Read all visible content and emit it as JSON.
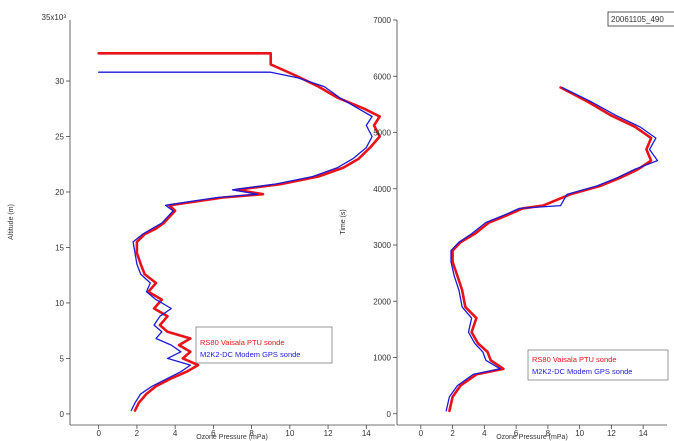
{
  "chart_data": [
    {
      "type": "line",
      "x_axis": {
        "label": "Ozone Pressure (mPa)",
        "range": [
          -1.5,
          15.5
        ],
        "ticks": [
          0,
          2,
          4,
          6,
          8,
          10,
          12,
          14
        ],
        "tick_labels": [
          "0",
          "2",
          "4",
          "6",
          "8",
          "10",
          "12",
          "14"
        ]
      },
      "y_axis": {
        "label": "Altitude (m)",
        "range": [
          -1000,
          35500
        ],
        "multiplier_label": "35x10³",
        "ticks": [
          0,
          5000,
          10000,
          15000,
          20000,
          25000,
          30000
        ],
        "tick_labels": [
          "0",
          "5",
          "10",
          "15",
          "20",
          "25",
          "30"
        ]
      },
      "legend": {
        "placement": "lower-right"
      },
      "series": [
        {
          "name": "RS80 Vaisala PTU sonde",
          "color": "#e8121a",
          "points": [
            [
              1.9,
              300
            ],
            [
              2.1,
              1000
            ],
            [
              2.5,
              1800
            ],
            [
              3.0,
              2500
            ],
            [
              3.8,
              3200
            ],
            [
              4.6,
              3800
            ],
            [
              5.2,
              4400
            ],
            [
              4.4,
              5000
            ],
            [
              4.8,
              5600
            ],
            [
              4.2,
              6200
            ],
            [
              4.8,
              6800
            ],
            [
              3.6,
              7400
            ],
            [
              3.2,
              8000
            ],
            [
              3.6,
              8800
            ],
            [
              2.9,
              9500
            ],
            [
              3.3,
              10300
            ],
            [
              2.6,
              11000
            ],
            [
              3.0,
              11800
            ],
            [
              2.4,
              12600
            ],
            [
              2.2,
              13500
            ],
            [
              2.0,
              14500
            ],
            [
              2.0,
              15500
            ],
            [
              2.4,
              16200
            ],
            [
              3.0,
              16700
            ],
            [
              3.4,
              17200
            ],
            [
              4.0,
              18300
            ],
            [
              3.7,
              18800
            ],
            [
              5.3,
              19200
            ],
            [
              6.5,
              19500
            ],
            [
              8.6,
              19800
            ],
            [
              7.2,
              20200
            ],
            [
              9.5,
              20700
            ],
            [
              11.5,
              21400
            ],
            [
              12.8,
              22200
            ],
            [
              13.6,
              23000
            ],
            [
              14.2,
              24000
            ],
            [
              14.7,
              25000
            ],
            [
              14.4,
              26000
            ],
            [
              14.7,
              26800
            ],
            [
              13.9,
              27500
            ],
            [
              12.5,
              28500
            ],
            [
              11.5,
              29500
            ],
            [
              10.3,
              30500
            ],
            [
              9.0,
              31500
            ],
            [
              9.0,
              32500
            ],
            [
              0,
              32500
            ]
          ]
        },
        {
          "name": "M2K2-DC Modem GPS sonde",
          "color": "#1a1ad8",
          "points": [
            [
              1.7,
              300
            ],
            [
              1.9,
              1000
            ],
            [
              2.2,
              1800
            ],
            [
              2.8,
              2500
            ],
            [
              3.6,
              3200
            ],
            [
              4.3,
              3800
            ],
            [
              4.8,
              4400
            ],
            [
              3.6,
              5000
            ],
            [
              4.3,
              5600
            ],
            [
              3.8,
              6200
            ],
            [
              3.0,
              6800
            ],
            [
              3.3,
              7400
            ],
            [
              2.9,
              8000
            ],
            [
              3.2,
              8800
            ],
            [
              3.8,
              9500
            ],
            [
              3.0,
              10300
            ],
            [
              2.5,
              11000
            ],
            [
              2.7,
              11800
            ],
            [
              2.2,
              12600
            ],
            [
              2.0,
              13500
            ],
            [
              1.9,
              14500
            ],
            [
              1.8,
              15500
            ],
            [
              2.3,
              16200
            ],
            [
              2.8,
              16700
            ],
            [
              3.3,
              17200
            ],
            [
              3.9,
              18300
            ],
            [
              3.5,
              18800
            ],
            [
              5.0,
              19200
            ],
            [
              6.2,
              19500
            ],
            [
              8.3,
              19800
            ],
            [
              7.0,
              20200
            ],
            [
              9.2,
              20700
            ],
            [
              11.2,
              21400
            ],
            [
              12.5,
              22200
            ],
            [
              13.3,
              23000
            ],
            [
              14.0,
              24000
            ],
            [
              14.3,
              25000
            ],
            [
              14.0,
              26000
            ],
            [
              14.3,
              26800
            ],
            [
              13.6,
              27500
            ],
            [
              12.6,
              28500
            ],
            [
              11.8,
              29500
            ],
            [
              10.4,
              30300
            ],
            [
              9.0,
              30800
            ],
            [
              0,
              30800
            ]
          ]
        }
      ]
    },
    {
      "type": "line",
      "annotation": "20061105_490",
      "x_axis": {
        "label": "Ozone Pressure (mPa)",
        "range": [
          -1.5,
          15.5
        ],
        "ticks": [
          0,
          2,
          4,
          6,
          8,
          10,
          12,
          14
        ],
        "tick_labels": [
          "0",
          "2",
          "4",
          "6",
          "8",
          "10",
          "12",
          "14"
        ]
      },
      "y_axis": {
        "label": "Time (s)",
        "range": [
          -200,
          7000
        ],
        "ticks": [
          0,
          1000,
          2000,
          3000,
          4000,
          5000,
          6000,
          7000
        ],
        "tick_labels": [
          "0",
          "1000",
          "2000",
          "3000",
          "4000",
          "5000",
          "6000",
          "7000"
        ]
      },
      "legend": {
        "placement": "lower-right"
      },
      "series": [
        {
          "name": "RS80 Vaisala PTU sonde",
          "color": "#e8121a",
          "points": [
            [
              1.8,
              50
            ],
            [
              2.0,
              300
            ],
            [
              2.5,
              500
            ],
            [
              3.5,
              700
            ],
            [
              5.2,
              800
            ],
            [
              4.4,
              950
            ],
            [
              4.2,
              1100
            ],
            [
              3.6,
              1250
            ],
            [
              3.2,
              1450
            ],
            [
              3.5,
              1700
            ],
            [
              2.8,
              1900
            ],
            [
              2.6,
              2200
            ],
            [
              2.3,
              2450
            ],
            [
              2.0,
              2700
            ],
            [
              2.0,
              2900
            ],
            [
              2.5,
              3050
            ],
            [
              3.4,
              3200
            ],
            [
              4.3,
              3400
            ],
            [
              5.6,
              3550
            ],
            [
              6.4,
              3650
            ],
            [
              7.7,
              3700
            ],
            [
              9.4,
              3900
            ],
            [
              11.3,
              4050
            ],
            [
              12.6,
              4200
            ],
            [
              13.7,
              4350
            ],
            [
              14.5,
              4500
            ],
            [
              14.2,
              4700
            ],
            [
              14.5,
              4900
            ],
            [
              13.5,
              5100
            ],
            [
              12.0,
              5300
            ],
            [
              10.5,
              5550
            ],
            [
              8.8,
              5800
            ]
          ]
        },
        {
          "name": "M2K2-DC Modem GPS sonde",
          "color": "#1a1ad8",
          "points": [
            [
              1.6,
              50
            ],
            [
              1.8,
              300
            ],
            [
              2.3,
              500
            ],
            [
              3.3,
              700
            ],
            [
              5.0,
              800
            ],
            [
              4.1,
              950
            ],
            [
              3.9,
              1100
            ],
            [
              3.4,
              1250
            ],
            [
              3.0,
              1450
            ],
            [
              3.2,
              1700
            ],
            [
              2.6,
              1900
            ],
            [
              2.4,
              2200
            ],
            [
              2.1,
              2450
            ],
            [
              1.9,
              2700
            ],
            [
              1.9,
              2900
            ],
            [
              2.4,
              3050
            ],
            [
              3.2,
              3200
            ],
            [
              4.1,
              3400
            ],
            [
              5.4,
              3550
            ],
            [
              6.2,
              3650
            ],
            [
              8.8,
              3700
            ],
            [
              9.2,
              3900
            ],
            [
              11.1,
              4050
            ],
            [
              12.4,
              4200
            ],
            [
              13.5,
              4350
            ],
            [
              14.9,
              4500
            ],
            [
              14.4,
              4700
            ],
            [
              14.8,
              4900
            ],
            [
              13.8,
              5100
            ],
            [
              12.3,
              5300
            ],
            [
              10.7,
              5550
            ],
            [
              8.9,
              5800
            ]
          ]
        }
      ]
    }
  ]
}
